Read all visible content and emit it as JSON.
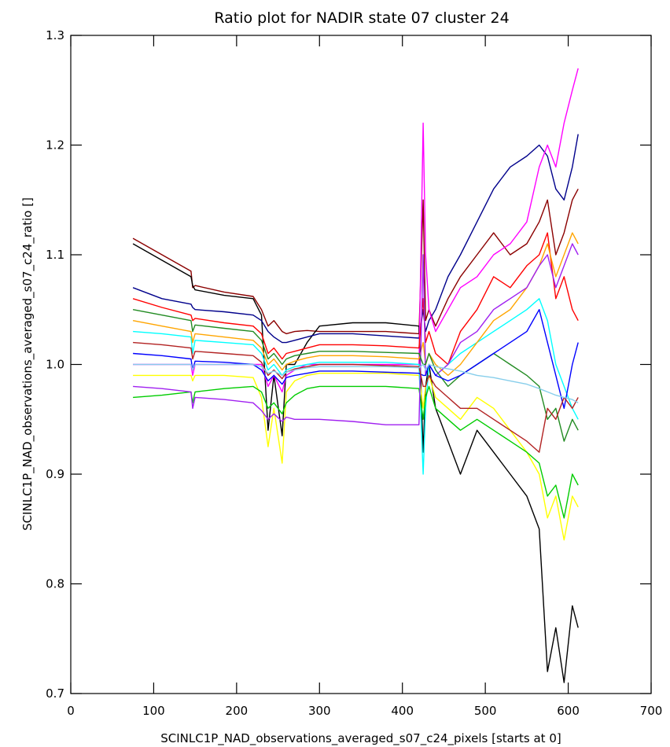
{
  "chart_data": {
    "type": "line",
    "title": "Ratio plot for NADIR state 07 cluster 24",
    "xlabel": "SCINLC1P_NAD_observations_averaged_s07_c24_pixels [starts at 0]",
    "ylabel": "SCINLC1P_NAD_observations_averaged_s07_c24_ratio []",
    "xlim": [
      0,
      700
    ],
    "ylim": [
      0.7,
      1.3
    ],
    "x_ticks": [
      "0",
      "100",
      "200",
      "300",
      "400",
      "500",
      "600",
      "700"
    ],
    "y_ticks": [
      "0.7",
      "0.8",
      "0.9",
      "1.0",
      "1.1",
      "1.2",
      "1.3"
    ],
    "grid": false,
    "legend": "none",
    "x_points": [
      75,
      110,
      145,
      147,
      150,
      185,
      220,
      230,
      238,
      245,
      255,
      260,
      270,
      285,
      300,
      340,
      380,
      420,
      425,
      428,
      432,
      440,
      455,
      470,
      490,
      510,
      530,
      550,
      565,
      575,
      585,
      595,
      605,
      612
    ],
    "series": [
      {
        "color": "#8b0000",
        "values": [
          1.115,
          1.1,
          1.085,
          1.07,
          1.072,
          1.066,
          1.062,
          1.05,
          1.035,
          1.04,
          1.03,
          1.028,
          1.03,
          1.031,
          1.03,
          1.03,
          1.03,
          1.028,
          1.15,
          1.04,
          1.05,
          1.035,
          1.06,
          1.08,
          1.1,
          1.12,
          1.1,
          1.11,
          1.13,
          1.15,
          1.1,
          1.12,
          1.15,
          1.16
        ]
      },
      {
        "color": "#000000",
        "values": [
          1.11,
          1.095,
          1.08,
          1.072,
          1.068,
          1.063,
          1.06,
          1.045,
          0.94,
          0.99,
          0.935,
          1.0,
          1.0,
          1.02,
          1.035,
          1.038,
          1.038,
          1.035,
          0.92,
          0.98,
          1.0,
          0.96,
          0.93,
          0.9,
          0.94,
          0.92,
          0.9,
          0.88,
          0.85,
          0.72,
          0.76,
          0.71,
          0.78,
          0.76
        ]
      },
      {
        "color": "#00008b",
        "values": [
          1.07,
          1.06,
          1.055,
          1.052,
          1.05,
          1.048,
          1.045,
          1.04,
          1.03,
          1.025,
          1.02,
          1.02,
          1.022,
          1.025,
          1.028,
          1.028,
          1.026,
          1.024,
          1.05,
          1.03,
          1.04,
          1.05,
          1.08,
          1.1,
          1.13,
          1.16,
          1.18,
          1.19,
          1.2,
          1.19,
          1.16,
          1.15,
          1.18,
          1.21
        ]
      },
      {
        "color": "#ff00ff",
        "values": [
          1.0,
          1.0,
          1.0,
          0.99,
          1.0,
          1.0,
          1.0,
          1.0,
          0.98,
          0.99,
          0.975,
          0.99,
          0.995,
          1.0,
          1.0,
          1.0,
          1.0,
          1.0,
          1.22,
          1.1,
          1.05,
          1.03,
          1.05,
          1.07,
          1.08,
          1.1,
          1.11,
          1.13,
          1.18,
          1.2,
          1.18,
          1.22,
          1.25,
          1.27
        ]
      },
      {
        "color": "#ff0000",
        "values": [
          1.06,
          1.052,
          1.045,
          1.04,
          1.042,
          1.038,
          1.035,
          1.028,
          1.01,
          1.015,
          1.005,
          1.01,
          1.012,
          1.015,
          1.018,
          1.018,
          1.017,
          1.015,
          1.06,
          1.02,
          1.03,
          1.01,
          1.0,
          1.03,
          1.05,
          1.08,
          1.07,
          1.09,
          1.1,
          1.12,
          1.06,
          1.08,
          1.05,
          1.04
        ]
      },
      {
        "color": "#ffff00",
        "values": [
          0.99,
          0.99,
          0.99,
          0.985,
          0.99,
          0.99,
          0.988,
          0.97,
          0.925,
          0.96,
          0.91,
          0.975,
          0.985,
          0.99,
          0.992,
          0.992,
          0.992,
          0.99,
          0.96,
          0.98,
          0.99,
          0.97,
          0.96,
          0.95,
          0.97,
          0.96,
          0.94,
          0.92,
          0.9,
          0.86,
          0.88,
          0.84,
          0.88,
          0.87
        ]
      },
      {
        "color": "#00ffff",
        "values": [
          1.03,
          1.028,
          1.025,
          1.01,
          1.022,
          1.02,
          1.018,
          1.01,
          0.995,
          1.0,
          0.99,
          0.995,
          0.998,
          1.0,
          1.002,
          1.002,
          1.002,
          1.0,
          0.9,
          0.96,
          1.0,
          0.99,
          1.0,
          1.01,
          1.02,
          1.03,
          1.04,
          1.05,
          1.06,
          1.04,
          1.0,
          0.98,
          0.96,
          0.95
        ]
      },
      {
        "color": "#00cc00",
        "values": [
          0.97,
          0.972,
          0.975,
          0.965,
          0.975,
          0.978,
          0.98,
          0.975,
          0.96,
          0.965,
          0.955,
          0.965,
          0.972,
          0.978,
          0.98,
          0.98,
          0.98,
          0.978,
          0.95,
          0.97,
          0.98,
          0.96,
          0.95,
          0.94,
          0.95,
          0.94,
          0.93,
          0.92,
          0.91,
          0.88,
          0.89,
          0.86,
          0.9,
          0.89
        ]
      },
      {
        "color": "#ffa500",
        "values": [
          1.04,
          1.035,
          1.03,
          1.02,
          1.028,
          1.025,
          1.022,
          1.015,
          1.0,
          1.005,
          0.995,
          1.0,
          1.003,
          1.006,
          1.008,
          1.008,
          1.007,
          1.005,
          1.02,
          1.0,
          1.01,
          1.0,
          0.99,
          1.0,
          1.02,
          1.04,
          1.05,
          1.07,
          1.09,
          1.11,
          1.08,
          1.1,
          1.12,
          1.11
        ]
      },
      {
        "color": "#a020f0",
        "values": [
          0.98,
          0.978,
          0.975,
          0.96,
          0.97,
          0.968,
          0.965,
          0.958,
          0.95,
          0.955,
          0.948,
          0.952,
          0.95,
          0.95,
          0.95,
          0.948,
          0.945,
          0.945,
          1.1,
          0.99,
          1.0,
          0.99,
          1.0,
          1.02,
          1.03,
          1.05,
          1.06,
          1.07,
          1.09,
          1.1,
          1.07,
          1.09,
          1.11,
          1.1
        ]
      },
      {
        "color": "#228b22",
        "values": [
          1.05,
          1.045,
          1.04,
          1.03,
          1.036,
          1.033,
          1.03,
          1.022,
          1.005,
          1.01,
          1.0,
          1.005,
          1.008,
          1.01,
          1.012,
          1.012,
          1.011,
          1.01,
          1.0,
          1.0,
          1.01,
          0.995,
          0.98,
          0.99,
          1.0,
          1.01,
          1.0,
          0.99,
          0.98,
          0.95,
          0.96,
          0.93,
          0.95,
          0.94
        ]
      },
      {
        "color": "#0000ff",
        "values": [
          1.01,
          1.008,
          1.005,
          0.995,
          1.003,
          1.002,
          1.0,
          0.995,
          0.985,
          0.99,
          0.982,
          0.988,
          0.99,
          0.992,
          0.994,
          0.994,
          0.993,
          0.992,
          0.99,
          0.99,
          1.0,
          0.99,
          0.985,
          0.99,
          1.0,
          1.01,
          1.02,
          1.03,
          1.05,
          1.02,
          0.99,
          0.96,
          1.0,
          1.02
        ]
      },
      {
        "color": "#b22222",
        "values": [
          1.02,
          1.018,
          1.015,
          1.005,
          1.012,
          1.01,
          1.008,
          1.002,
          0.99,
          0.995,
          0.987,
          0.993,
          0.996,
          0.998,
          1.0,
          1.0,
          0.999,
          0.998,
          0.98,
          0.98,
          0.99,
          0.98,
          0.97,
          0.96,
          0.96,
          0.95,
          0.94,
          0.93,
          0.92,
          0.96,
          0.95,
          0.97,
          0.96,
          0.97
        ]
      },
      {
        "color": "#87ceeb",
        "values": [
          1.0,
          1.0,
          1.0,
          0.995,
          1.0,
          1.0,
          1.0,
          0.998,
          0.992,
          0.994,
          0.99,
          0.993,
          0.995,
          0.997,
          0.998,
          0.998,
          0.998,
          0.997,
          1.0,
          0.995,
          1.0,
          0.998,
          0.996,
          0.994,
          0.99,
          0.988,
          0.985,
          0.982,
          0.978,
          0.975,
          0.972,
          0.97,
          0.968,
          0.965
        ]
      }
    ]
  }
}
